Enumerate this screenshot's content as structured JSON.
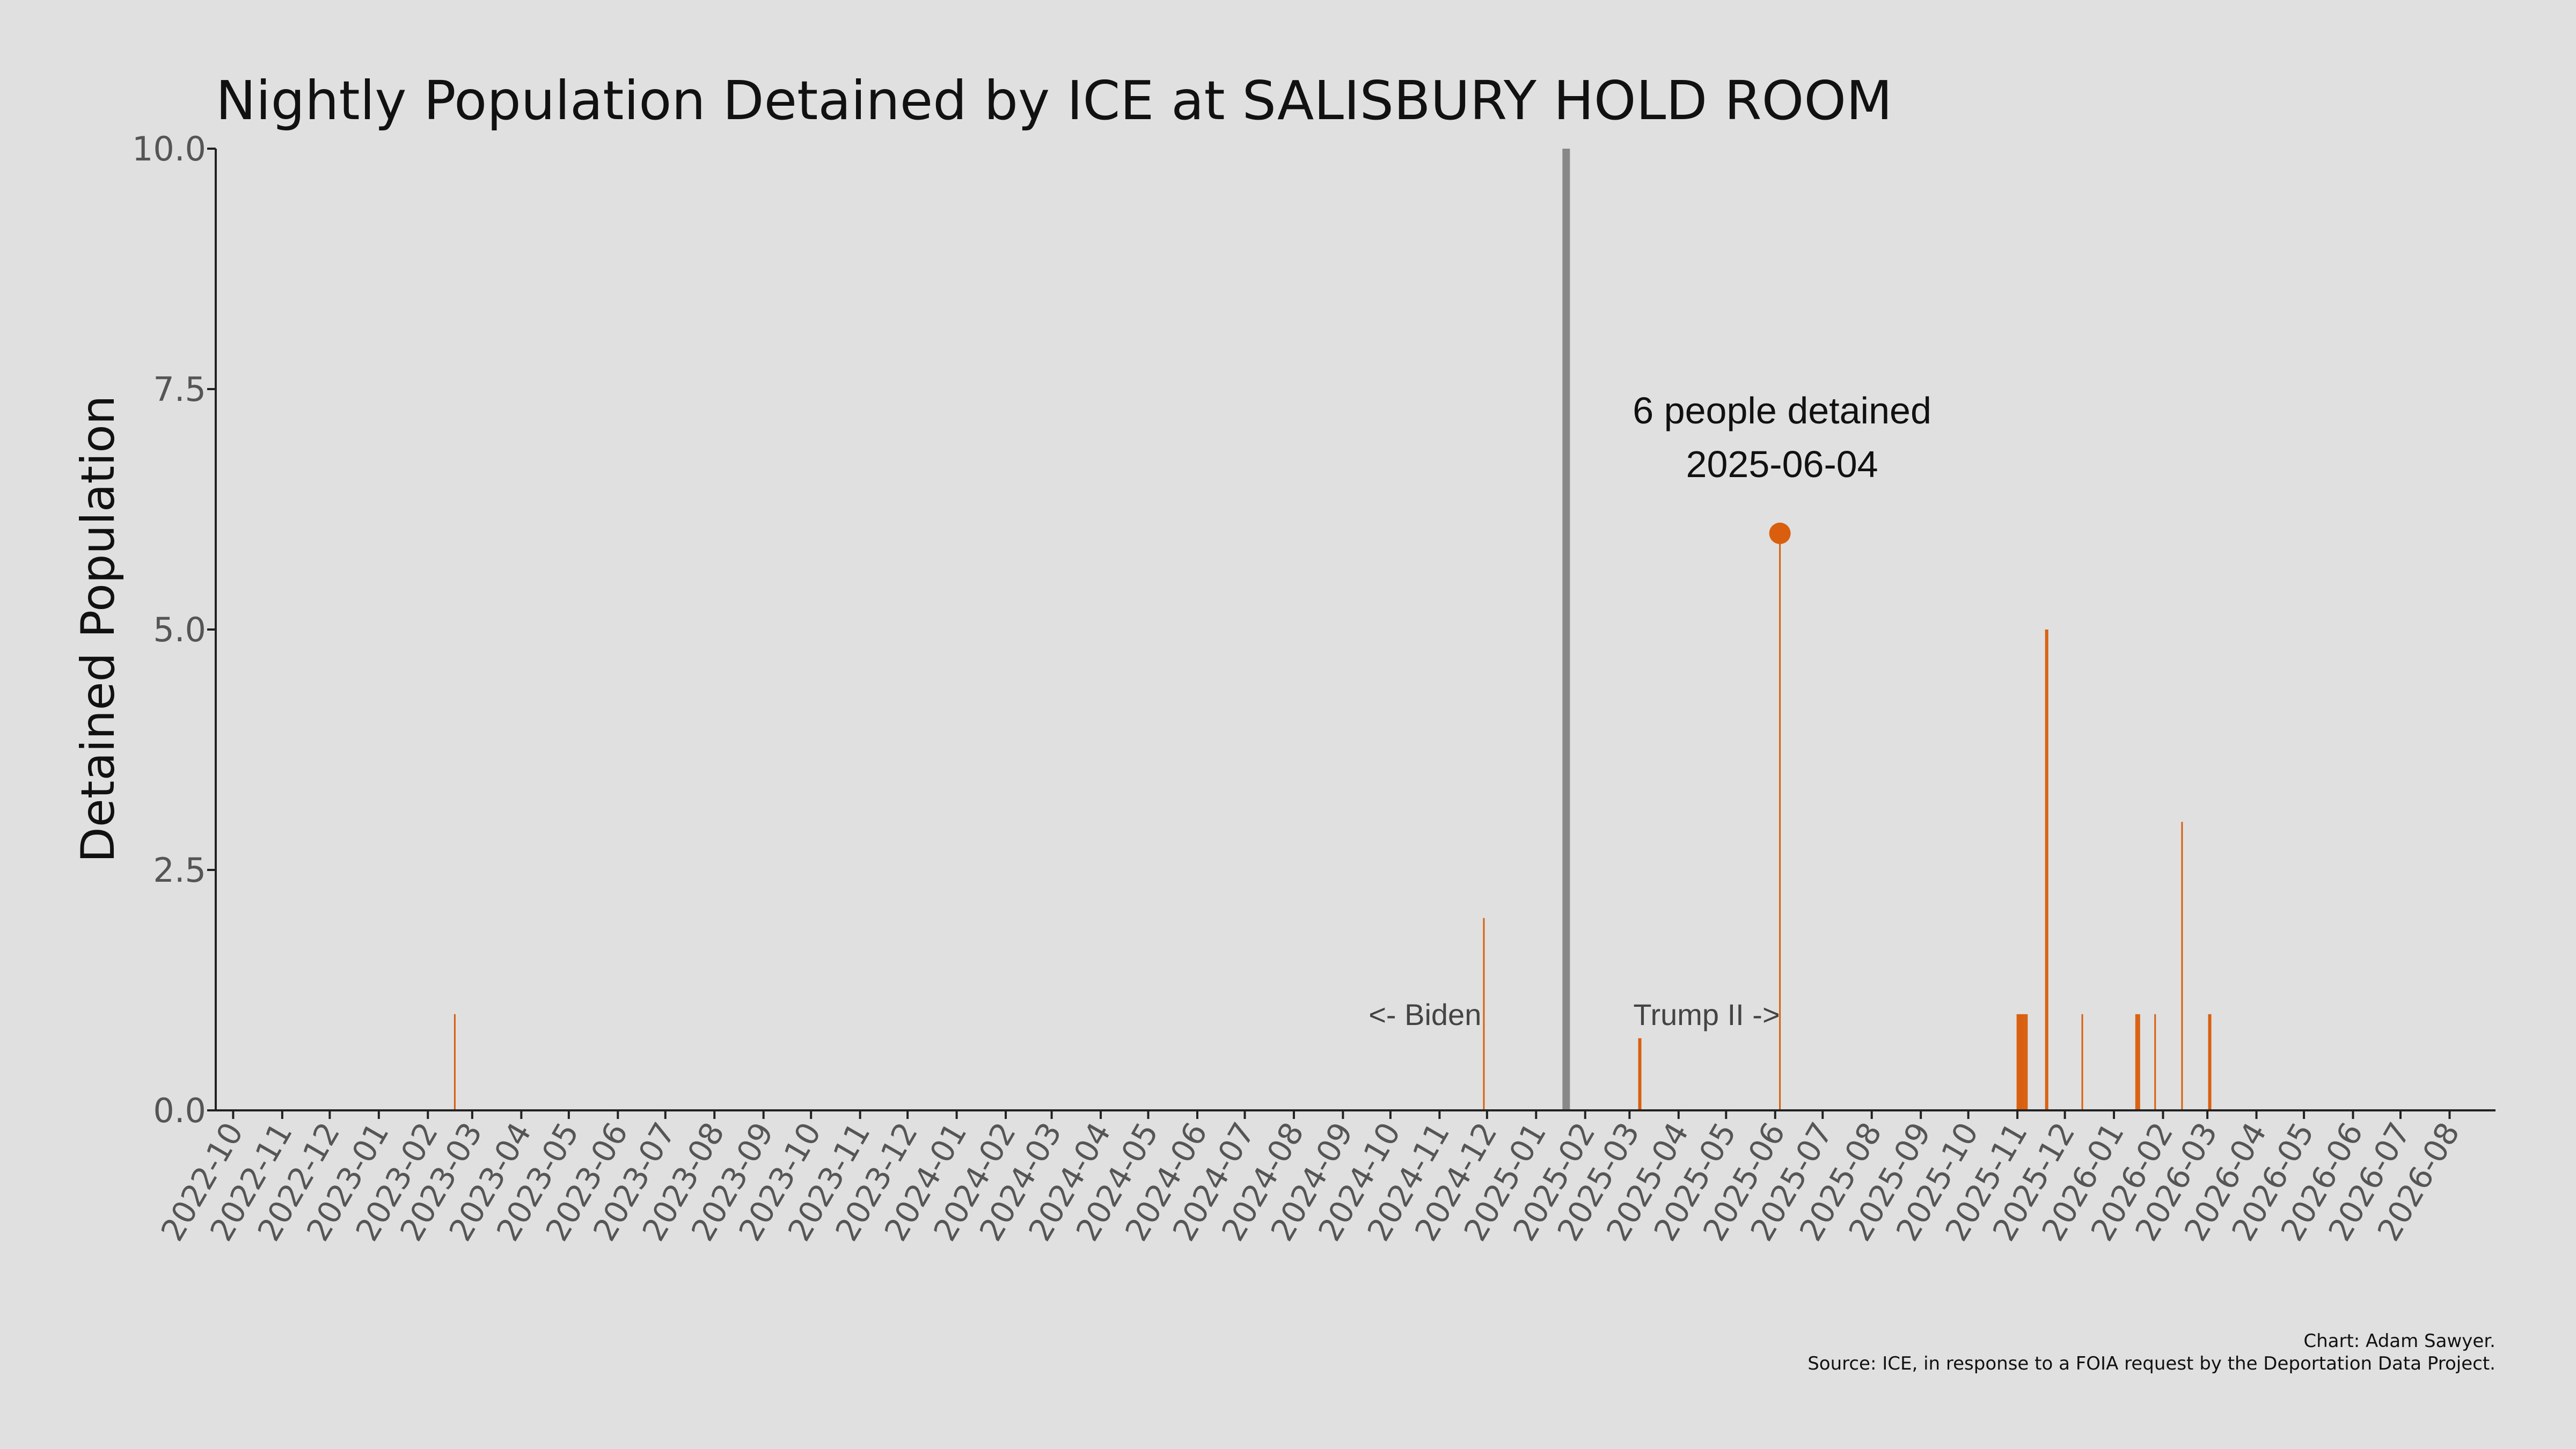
{
  "chart_data": {
    "type": "bar",
    "title": "Nightly Population Detained by ICE at SALISBURY HOLD ROOM",
    "xlabel": "",
    "ylabel": "Detained Population",
    "xlim": [
      "2022-09-20",
      "2026-08-30"
    ],
    "ylim": [
      0,
      10
    ],
    "yticks": [
      "0.0",
      "2.5",
      "5.0",
      "7.5",
      "10.0"
    ],
    "xticks": [
      "2022-10",
      "2022-11",
      "2022-12",
      "2023-01",
      "2023-02",
      "2023-03",
      "2023-04",
      "2023-05",
      "2023-06",
      "2023-07",
      "2023-08",
      "2023-09",
      "2023-10",
      "2023-11",
      "2023-12",
      "2024-01",
      "2024-02",
      "2024-03",
      "2024-04",
      "2024-05",
      "2024-06",
      "2024-07",
      "2024-08",
      "2024-09",
      "2024-10",
      "2024-11",
      "2024-12",
      "2025-01",
      "2025-02",
      "2025-03",
      "2025-04",
      "2025-05",
      "2025-06",
      "2025-07",
      "2025-08",
      "2025-09",
      "2025-10",
      "2025-11",
      "2025-12",
      "2026-01",
      "2026-02",
      "2026-03",
      "2026-04",
      "2026-05",
      "2026-06",
      "2026-07",
      "2026-08"
    ],
    "grid": false,
    "bar_color": "#d95f0e",
    "series": [
      {
        "points": [
          {
            "date": "2023-02-18",
            "value": 1
          },
          {
            "date": "2024-11-29",
            "value": 2
          },
          {
            "date": "2025-03-07",
            "value": 0.75
          },
          {
            "date": "2025-03-08",
            "value": 0.75
          },
          {
            "date": "2025-06-04",
            "value": 6
          },
          {
            "date": "2025-11-01",
            "value": 1
          },
          {
            "date": "2025-11-02",
            "value": 1
          },
          {
            "date": "2025-11-03",
            "value": 1
          },
          {
            "date": "2025-11-04",
            "value": 1
          },
          {
            "date": "2025-11-05",
            "value": 1
          },
          {
            "date": "2025-11-06",
            "value": 1
          },
          {
            "date": "2025-11-07",
            "value": 1
          },
          {
            "date": "2025-11-19",
            "value": 5
          },
          {
            "date": "2025-11-20",
            "value": 5
          },
          {
            "date": "2025-12-12",
            "value": 1
          },
          {
            "date": "2026-01-15",
            "value": 1
          },
          {
            "date": "2026-01-16",
            "value": 1
          },
          {
            "date": "2026-01-17",
            "value": 1
          },
          {
            "date": "2026-01-27",
            "value": 1
          },
          {
            "date": "2026-02-13",
            "value": 3
          },
          {
            "date": "2026-03-02",
            "value": 1
          },
          {
            "date": "2026-03-03",
            "value": 1
          }
        ]
      }
    ],
    "vline": {
      "date": "2025-01-20",
      "color": "#888888"
    },
    "highlight": {
      "date": "2025-06-04",
      "value": 6,
      "line1": "6 people detained",
      "line2": "2025-06-04"
    },
    "era_left": "<- Biden",
    "era_right": "Trump II ->",
    "credit": "Chart: Adam Sawyer.",
    "source": "Source: ICE, in response to a FOIA request by the Deportation Data Project."
  }
}
